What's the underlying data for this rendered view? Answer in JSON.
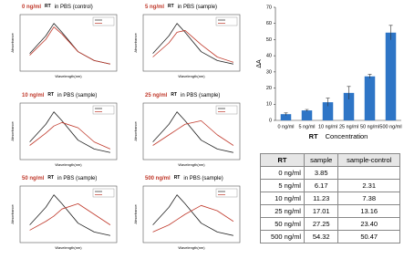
{
  "chart_data": [
    {
      "type": "line",
      "concentration": "0 ng/ml",
      "analyte": "RT",
      "condition": "in PBS (control)",
      "xlabel": "Wavelength(nm)",
      "ylabel": "Absorbance",
      "x": [
        450,
        500,
        525,
        550,
        600,
        650,
        700
      ],
      "xlim": [
        420,
        720
      ],
      "ylim": [
        0.2,
        1.8
      ],
      "series": [
        {
          "color": "#222222",
          "values": [
            0.7,
            1.2,
            1.55,
            1.3,
            0.75,
            0.5,
            0.4
          ]
        },
        {
          "color": "#c0392b",
          "values": [
            0.65,
            1.1,
            1.45,
            1.25,
            0.75,
            0.5,
            0.4
          ]
        }
      ]
    },
    {
      "type": "line",
      "concentration": "5 ng/ml",
      "analyte": "RT",
      "condition": "in PBS (sample)",
      "xlabel": "Wavelength(nm)",
      "ylabel": "Absorbance",
      "x": [
        450,
        500,
        525,
        550,
        600,
        650,
        700
      ],
      "xlim": [
        420,
        720
      ],
      "ylim": [
        0.2,
        1.8
      ],
      "series": [
        {
          "color": "#222222",
          "values": [
            0.7,
            1.2,
            1.55,
            1.3,
            0.75,
            0.5,
            0.4
          ]
        },
        {
          "color": "#c0392b",
          "values": [
            0.6,
            1.0,
            1.3,
            1.35,
            0.95,
            0.6,
            0.45
          ]
        }
      ]
    },
    {
      "type": "line",
      "concentration": "10 ng/ml",
      "analyte": "RT",
      "condition": "in PBS (sample)",
      "xlabel": "Wavelength(nm)",
      "ylabel": "Absorbance",
      "x": [
        450,
        500,
        525,
        550,
        600,
        650,
        700
      ],
      "xlim": [
        420,
        720
      ],
      "ylim": [
        0.2,
        1.8
      ],
      "series": [
        {
          "color": "#222222",
          "values": [
            0.7,
            1.2,
            1.55,
            1.3,
            0.75,
            0.5,
            0.4
          ]
        },
        {
          "color": "#c0392b",
          "values": [
            0.6,
            0.95,
            1.15,
            1.25,
            1.1,
            0.7,
            0.5
          ]
        }
      ]
    },
    {
      "type": "line",
      "concentration": "25 ng/ml",
      "analyte": "RT",
      "condition": "in PBS (sample)",
      "xlabel": "Wavelength(nm)",
      "ylabel": "Absorbance",
      "x": [
        450,
        500,
        525,
        550,
        600,
        650,
        700
      ],
      "xlim": [
        420,
        720
      ],
      "ylim": [
        0.2,
        1.8
      ],
      "series": [
        {
          "color": "#222222",
          "values": [
            0.7,
            1.2,
            1.55,
            1.3,
            0.75,
            0.5,
            0.4
          ]
        },
        {
          "color": "#c0392b",
          "values": [
            0.6,
            0.9,
            1.05,
            1.2,
            1.3,
            0.9,
            0.6
          ]
        }
      ]
    },
    {
      "type": "line",
      "concentration": "50 ng/ml",
      "analyte": "RT",
      "condition": "in PBS (sample)",
      "xlabel": "Wavelength(nm)",
      "ylabel": "Absorbance",
      "x": [
        450,
        500,
        525,
        550,
        600,
        650,
        700
      ],
      "xlim": [
        420,
        720
      ],
      "ylim": [
        0.2,
        1.8
      ],
      "series": [
        {
          "color": "#222222",
          "values": [
            0.7,
            1.2,
            1.55,
            1.3,
            0.75,
            0.5,
            0.4
          ]
        },
        {
          "color": "#c0392b",
          "values": [
            0.55,
            0.8,
            0.95,
            1.15,
            1.3,
            1.0,
            0.7
          ]
        }
      ]
    },
    {
      "type": "line",
      "concentration": "500 ng/ml",
      "analyte": "RT",
      "condition": "in PBS (sample)",
      "xlabel": "Wavelength(nm)",
      "ylabel": "Absorbance",
      "x": [
        450,
        500,
        525,
        550,
        600,
        650,
        700
      ],
      "xlim": [
        420,
        720
      ],
      "ylim": [
        0.2,
        1.8
      ],
      "series": [
        {
          "color": "#222222",
          "values": [
            0.7,
            1.2,
            1.55,
            1.3,
            0.75,
            0.5,
            0.4
          ]
        },
        {
          "color": "#c0392b",
          "values": [
            0.5,
            0.7,
            0.85,
            1.0,
            1.25,
            1.1,
            0.8
          ]
        }
      ]
    },
    {
      "type": "bar",
      "ylabel": "ΔA",
      "xlabel_emphasis": "RT",
      "xlabel": "Concentration",
      "categories": [
        "0 ng/ml",
        "5 ng/ml",
        "10 ng/ml",
        "25 ng/ml",
        "50 ng/ml",
        "500 ng/ml"
      ],
      "values": [
        3.85,
        6.17,
        11.23,
        17.01,
        27.25,
        54.32
      ],
      "errors": [
        0.8,
        0.6,
        2.5,
        4,
        1.2,
        4.5
      ],
      "color": "#2e75c6",
      "ylim": [
        0,
        70
      ],
      "yticks": [
        0,
        10,
        20,
        30,
        40,
        50,
        60,
        70
      ]
    }
  ],
  "table": {
    "header": [
      "RT",
      "sample",
      "sample-control"
    ],
    "rows": [
      [
        "0 ng/ml",
        "3.85",
        null
      ],
      [
        "5 ng/ml",
        "6.17",
        "2.31"
      ],
      [
        "10 ng/ml",
        "11.23",
        "7.38"
      ],
      [
        "25 ng/ml",
        "17.01",
        "13.16"
      ],
      [
        "50 ng/ml",
        "27.25",
        "23.40"
      ],
      [
        "500 ng/ml",
        "54.32",
        "50.47"
      ]
    ]
  }
}
